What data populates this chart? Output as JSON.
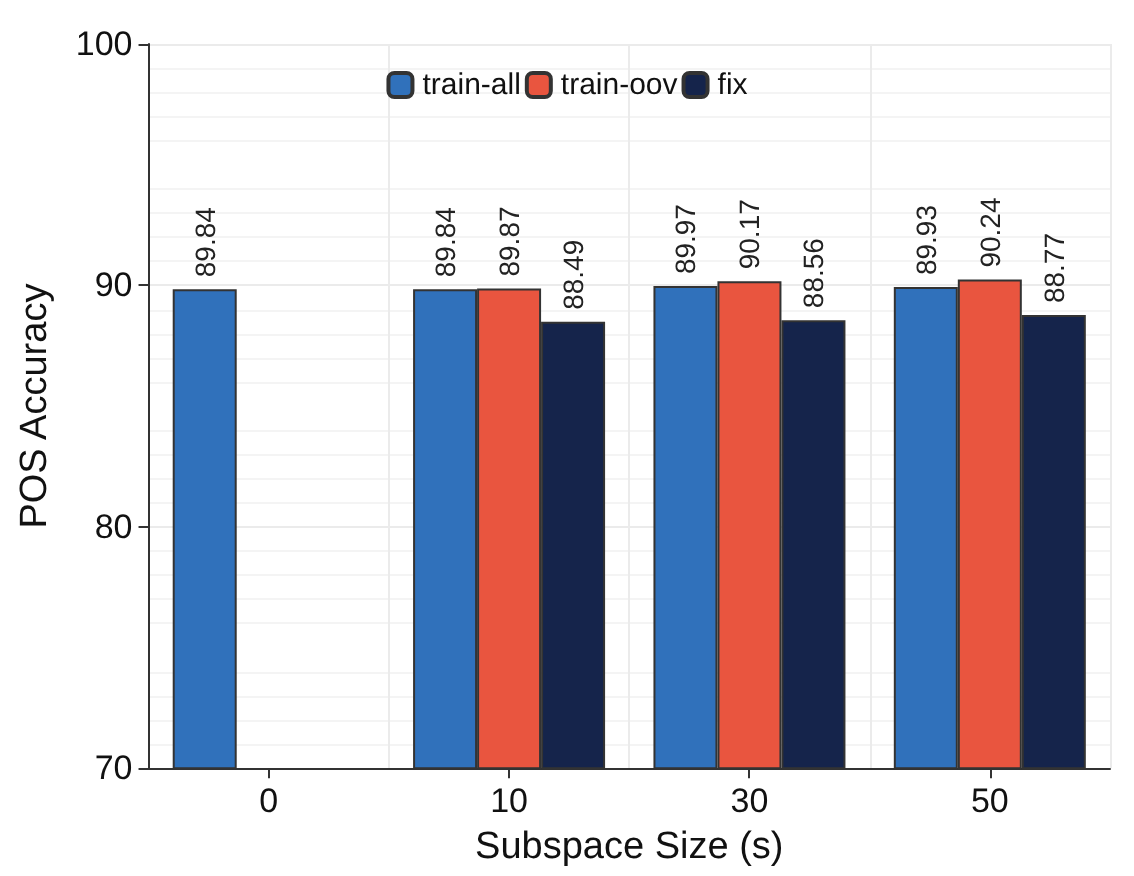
{
  "chart_data": {
    "type": "bar",
    "xlabel": "Subspace Size (s)",
    "ylabel": "POS Accuracy",
    "categories": [
      "0",
      "10",
      "30",
      "50"
    ],
    "series": [
      {
        "name": "train-all",
        "color": "#3071bb",
        "values": [
          89.84,
          89.84,
          89.97,
          89.93
        ]
      },
      {
        "name": "train-oov",
        "color": "#e9553f",
        "values": [
          null,
          89.87,
          90.17,
          90.24
        ]
      },
      {
        "name": "fix",
        "color": "#15244b",
        "values": [
          null,
          88.49,
          88.56,
          88.77
        ]
      }
    ],
    "ylim": [
      70,
      100
    ],
    "yticks": [
      70,
      80,
      90,
      100
    ],
    "grid": true,
    "legend": "top",
    "data_labels": true
  }
}
